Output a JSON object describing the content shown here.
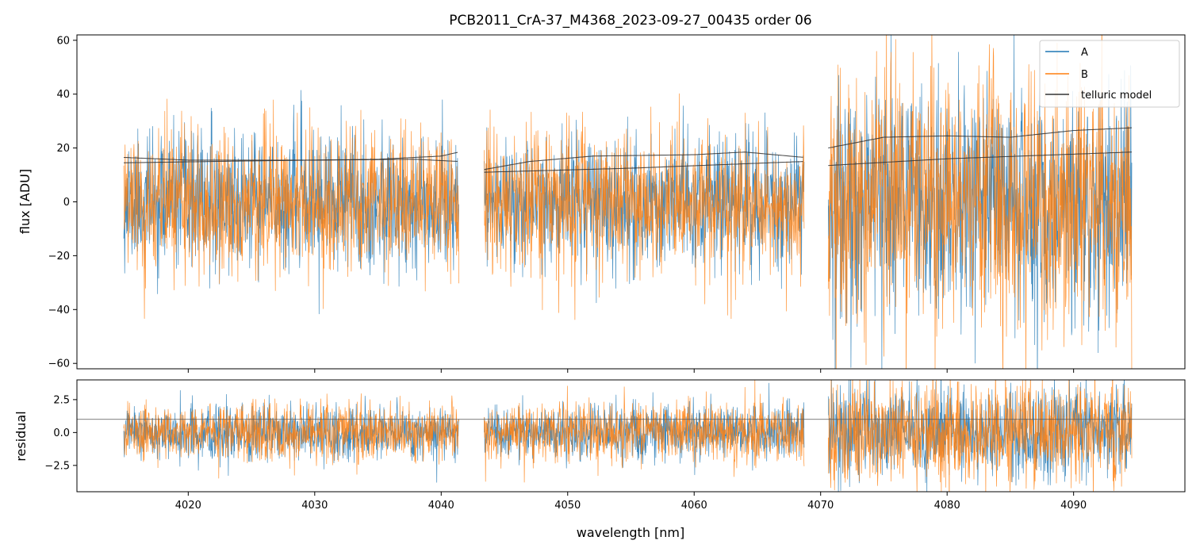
{
  "chart_data": [
    {
      "type": "line",
      "panel": "top",
      "title": "PCB2011_CrA-37_M4368_2023-09-27_00435  order 06",
      "xlabel": "",
      "ylabel": "flux [ADU]",
      "xlim": [
        4011.2,
        4098.8
      ],
      "ylim": [
        -62,
        62
      ],
      "yticks": [
        -60,
        -40,
        -20,
        0,
        20,
        40,
        60
      ],
      "ytick_labels": [
        "−60",
        "−40",
        "−20",
        "0",
        "20",
        "40",
        "60"
      ],
      "xticks": [
        4020,
        4030,
        4040,
        4050,
        4060,
        4070,
        4080,
        4090
      ],
      "segments": [
        [
          4014.9,
          4041.4
        ],
        [
          4043.4,
          4068.7
        ],
        [
          4070.6,
          4094.6
        ]
      ],
      "series": [
        {
          "name": "A",
          "color": "#1f77b4",
          "noise_sigma": [
            12,
            12,
            22
          ],
          "noise_seed": 11
        },
        {
          "name": "B",
          "color": "#ff7f0e",
          "noise_sigma": [
            13,
            13,
            24
          ],
          "noise_seed": 29
        }
      ],
      "telluric_model": {
        "name": "telluric model",
        "color": "#333333",
        "curves": [
          [
            [
              4014.9,
              16.5
            ],
            [
              4020,
              15.5
            ],
            [
              4030,
              15.5
            ],
            [
              4038,
              15.8
            ],
            [
              4041.4,
              15.0
            ]
          ],
          [
            [
              4014.9,
              14.5
            ],
            [
              4025,
              15.2
            ],
            [
              4035,
              15.8
            ],
            [
              4040,
              17
            ],
            [
              4041.4,
              18.5
            ]
          ],
          [
            [
              4043.4,
              12
            ],
            [
              4047,
              15
            ],
            [
              4052,
              17
            ],
            [
              4060,
              17.5
            ],
            [
              4064,
              18.5
            ],
            [
              4068.7,
              16.5
            ]
          ],
          [
            [
              4043.4,
              11
            ],
            [
              4055,
              12.5
            ],
            [
              4068.7,
              15
            ]
          ],
          [
            [
              4070.6,
              20
            ],
            [
              4075,
              24
            ],
            [
              4080,
              24.5
            ],
            [
              4085,
              24
            ],
            [
              4090,
              26.5
            ],
            [
              4094.6,
              27.5
            ]
          ],
          [
            [
              4070.6,
              13.5
            ],
            [
              4080,
              16
            ],
            [
              4094.6,
              18.5
            ]
          ]
        ]
      },
      "legend": {
        "entries": [
          "A",
          "B",
          "telluric model"
        ],
        "position": "upper right"
      }
    },
    {
      "type": "line",
      "panel": "bottom",
      "title": "",
      "xlabel": "wavelength [nm]",
      "ylabel": "residual",
      "xlim": [
        4011.2,
        4098.8
      ],
      "ylim": [
        -4.5,
        4.0
      ],
      "yticks": [
        -2.5,
        0.0,
        2.5
      ],
      "ytick_labels": [
        "−2.5",
        "0.0",
        "2.5"
      ],
      "xticks": [
        4020,
        4030,
        4040,
        4050,
        4060,
        4070,
        4080,
        4090
      ],
      "xtick_labels": [
        "4020",
        "4030",
        "4040",
        "4050",
        "4060",
        "4070",
        "4080",
        "4090"
      ],
      "reference_line_y": 1.0,
      "segments": [
        [
          4014.9,
          4041.4
        ],
        [
          4043.4,
          4068.7
        ],
        [
          4070.6,
          4094.6
        ]
      ],
      "series": [
        {
          "name": "A",
          "color": "#1f77b4",
          "noise_sigma": [
            1.0,
            1.0,
            1.8
          ],
          "noise_seed": 5
        },
        {
          "name": "B",
          "color": "#ff7f0e",
          "noise_sigma": [
            1.1,
            1.1,
            2.0
          ],
          "noise_seed": 17
        }
      ]
    }
  ]
}
